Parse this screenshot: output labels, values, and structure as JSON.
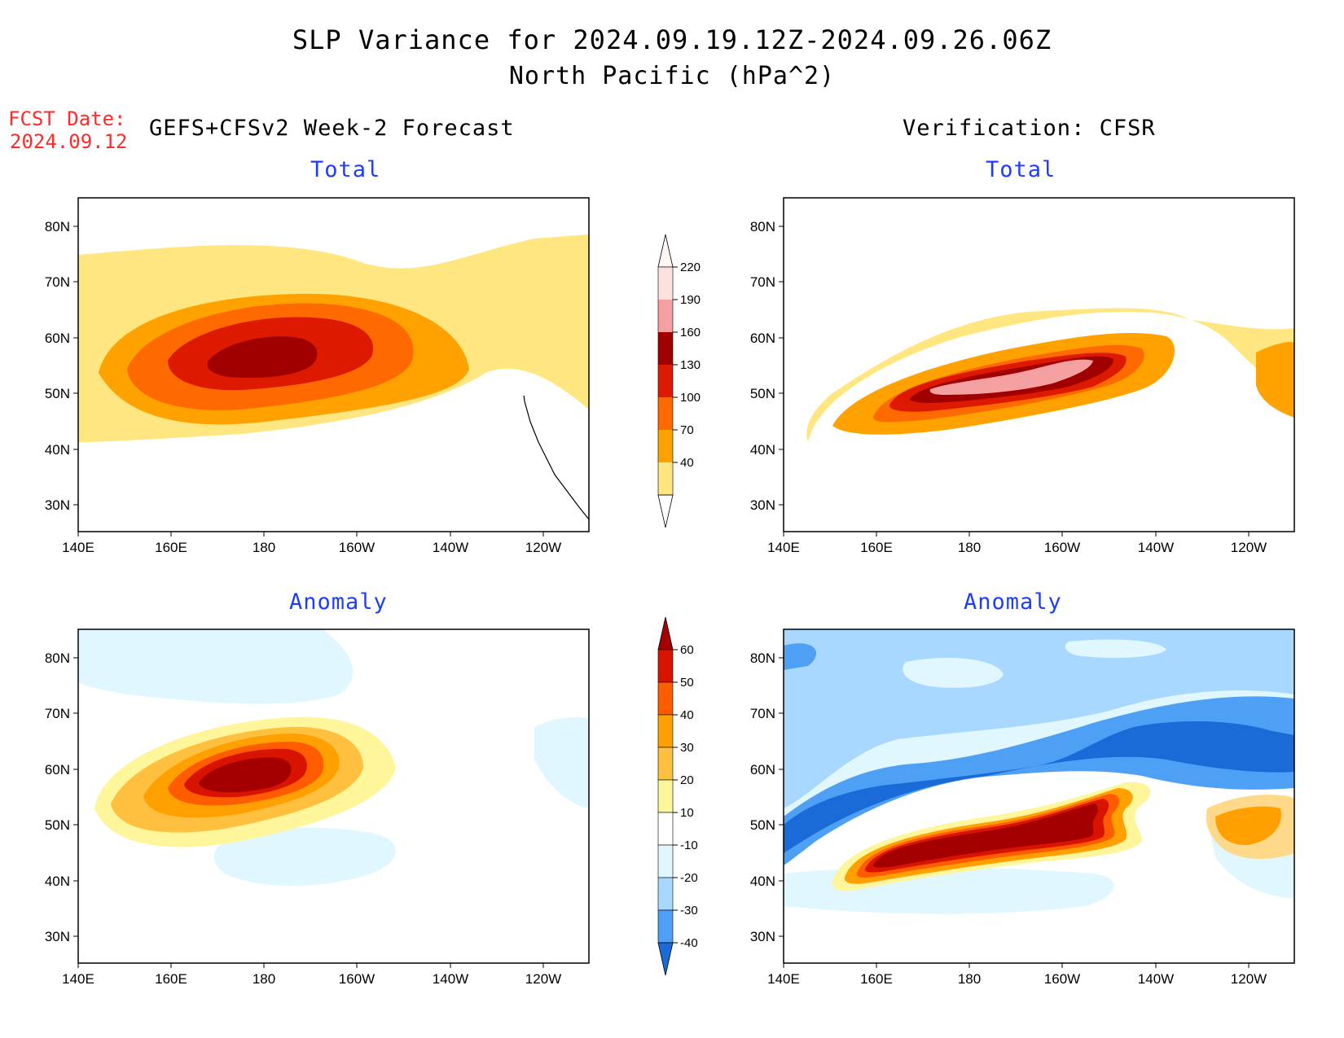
{
  "title": {
    "line1": "SLP Variance for 2024.09.19.12Z-2024.09.26.06Z",
    "line2": "North Pacific (hPa^2)"
  },
  "fcst": {
    "label": "FCST Date:",
    "date": "2024.09.12"
  },
  "left_header": "GEFS+CFSv2 Week-2 Forecast",
  "right_header": "Verification: CFSR",
  "panel_titles": {
    "total": "Total",
    "anomaly": "Anomaly"
  },
  "axes": {
    "lat_ticks": [
      "80N",
      "70N",
      "60N",
      "50N",
      "40N",
      "30N"
    ],
    "lon_ticks": [
      "140E",
      "160E",
      "180",
      "160W",
      "140W",
      "120W"
    ]
  },
  "colorbars": {
    "total": {
      "levels": [
        "220",
        "190",
        "160",
        "130",
        "100",
        "70",
        "40"
      ],
      "colors": [
        "#fde0e0",
        "#f5a0a0",
        "#a00000",
        "#dd1a00",
        "#ff6a00",
        "#ffa200",
        "#ffe680"
      ]
    },
    "anomaly": {
      "levels": [
        "60",
        "50",
        "40",
        "30",
        "20",
        "10",
        "-10",
        "-20",
        "-30",
        "-40"
      ],
      "colors": [
        "#a50000",
        "#d81400",
        "#ff5c00",
        "#ffa000",
        "#ffc040",
        "#fff59a",
        "#ffffff",
        "#e0f7ff",
        "#a8d8ff",
        "#4ea0f5",
        "#1a6ad8"
      ]
    }
  }
}
